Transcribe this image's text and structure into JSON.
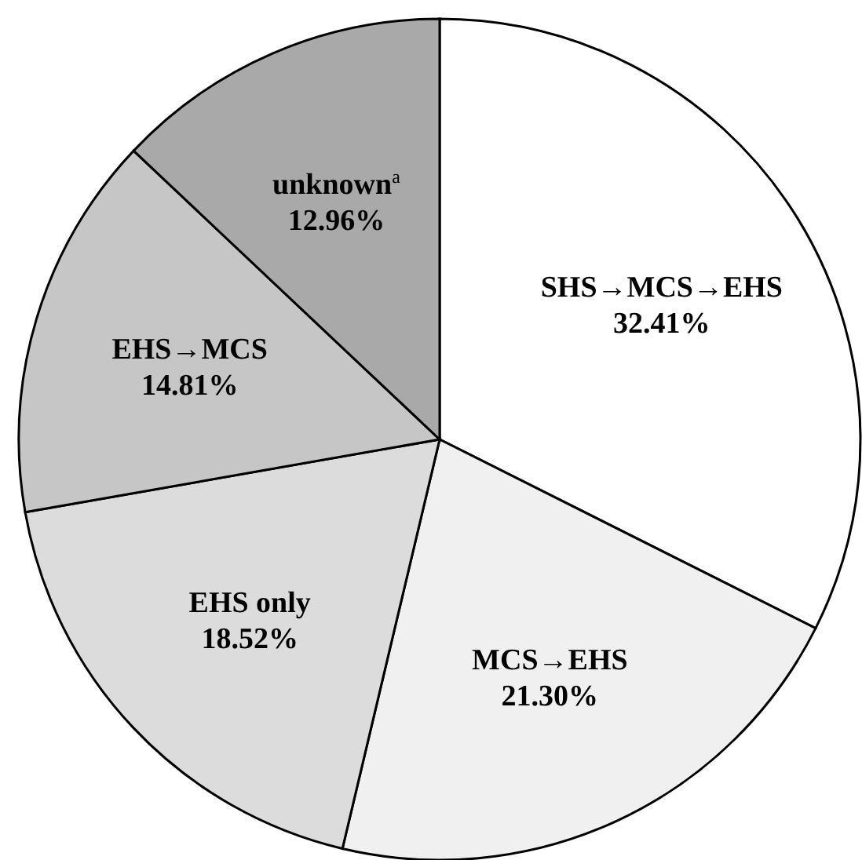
{
  "chart_data": {
    "type": "pie",
    "categories": [
      "SHS→MCS→EHS",
      "MCS→EHS",
      "EHS only",
      "EHS→MCS",
      "unknown$^{a}$"
    ],
    "values": [
      32.41,
      21.3,
      18.52,
      14.81,
      12.96
    ],
    "value_labels": [
      "32.41%",
      "21.30%",
      "18.52%",
      "14.81%",
      "12.96%"
    ],
    "colors": [
      "#ffffff",
      "#f0f0f0",
      "#dcdcdc",
      "#c6c6c6",
      "#a9a9a9"
    ]
  }
}
